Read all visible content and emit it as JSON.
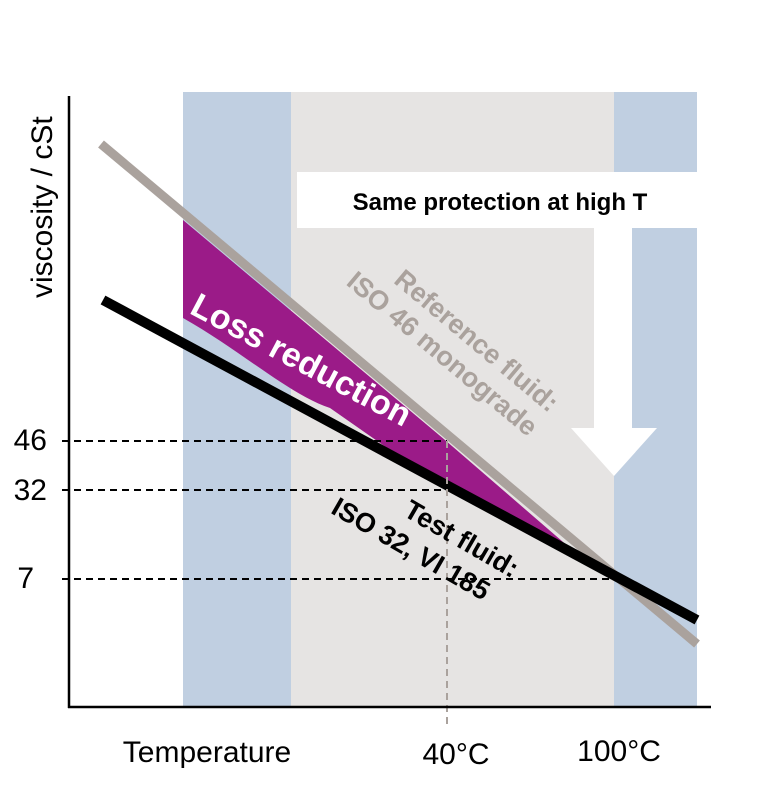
{
  "axes": {
    "y_label": "viscosity / cSt",
    "x_label": "Temperature",
    "y_ticks": [
      "46",
      "32",
      "7"
    ],
    "x_ticks": [
      "40°C",
      "100°C"
    ]
  },
  "annotations": {
    "protection_label": "Same protection at high T",
    "loss_label": "Loss reduction",
    "reference_fluid_line1": "Reference fluid:",
    "reference_fluid_line2": "ISO 46 monograde",
    "test_fluid_line1": "Test fluid:",
    "test_fluid_line2": "ISO 32, VI 185"
  },
  "colors": {
    "band_blue": "#c0cfe1",
    "band_gray": "#e6e4e3",
    "reference_line": "#aaa29d",
    "test_line": "#000000",
    "loss_area": "#9b1b88",
    "arrow": "#ffffff"
  }
}
